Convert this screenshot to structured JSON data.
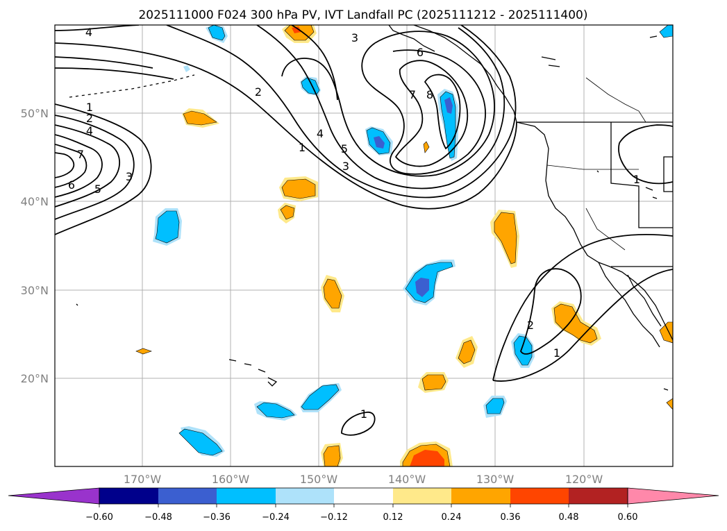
{
  "title": "2025111000 F024 300 hPa PV, IVT Landfall PC (2025111212 - 2025111400)",
  "map": {
    "lon_labels": [
      "170°W",
      "160°W",
      "150°W",
      "140°W",
      "130°W",
      "120°W"
    ],
    "lat_labels": [
      "50°N",
      "40°N",
      "30°N",
      "20°N"
    ]
  },
  "contour_labels": [
    "4",
    "3",
    "6",
    "8",
    "7",
    "2",
    "5",
    "4",
    "3",
    "1",
    "1",
    "2",
    "4",
    "7",
    "6",
    "5",
    "3",
    "1",
    "1",
    "2",
    "1"
  ],
  "colorbar": {
    "tick_labels": [
      "−0.60",
      "−0.48",
      "−0.36",
      "−0.24",
      "−0.12",
      "0.12",
      "0.24",
      "0.36",
      "0.48",
      "0.60"
    ],
    "colors": [
      "#9933cc",
      "#00008b",
      "#3b5fd0",
      "#00bfff",
      "#aee2fa",
      "#ffffff",
      "#ffe98a",
      "#ffa500",
      "#ff4500",
      "#b22222",
      "#ff88aa"
    ]
  },
  "colors": {
    "pv_contour": "#000000",
    "grid": "#b0b0b0",
    "coast": "#000000"
  }
}
